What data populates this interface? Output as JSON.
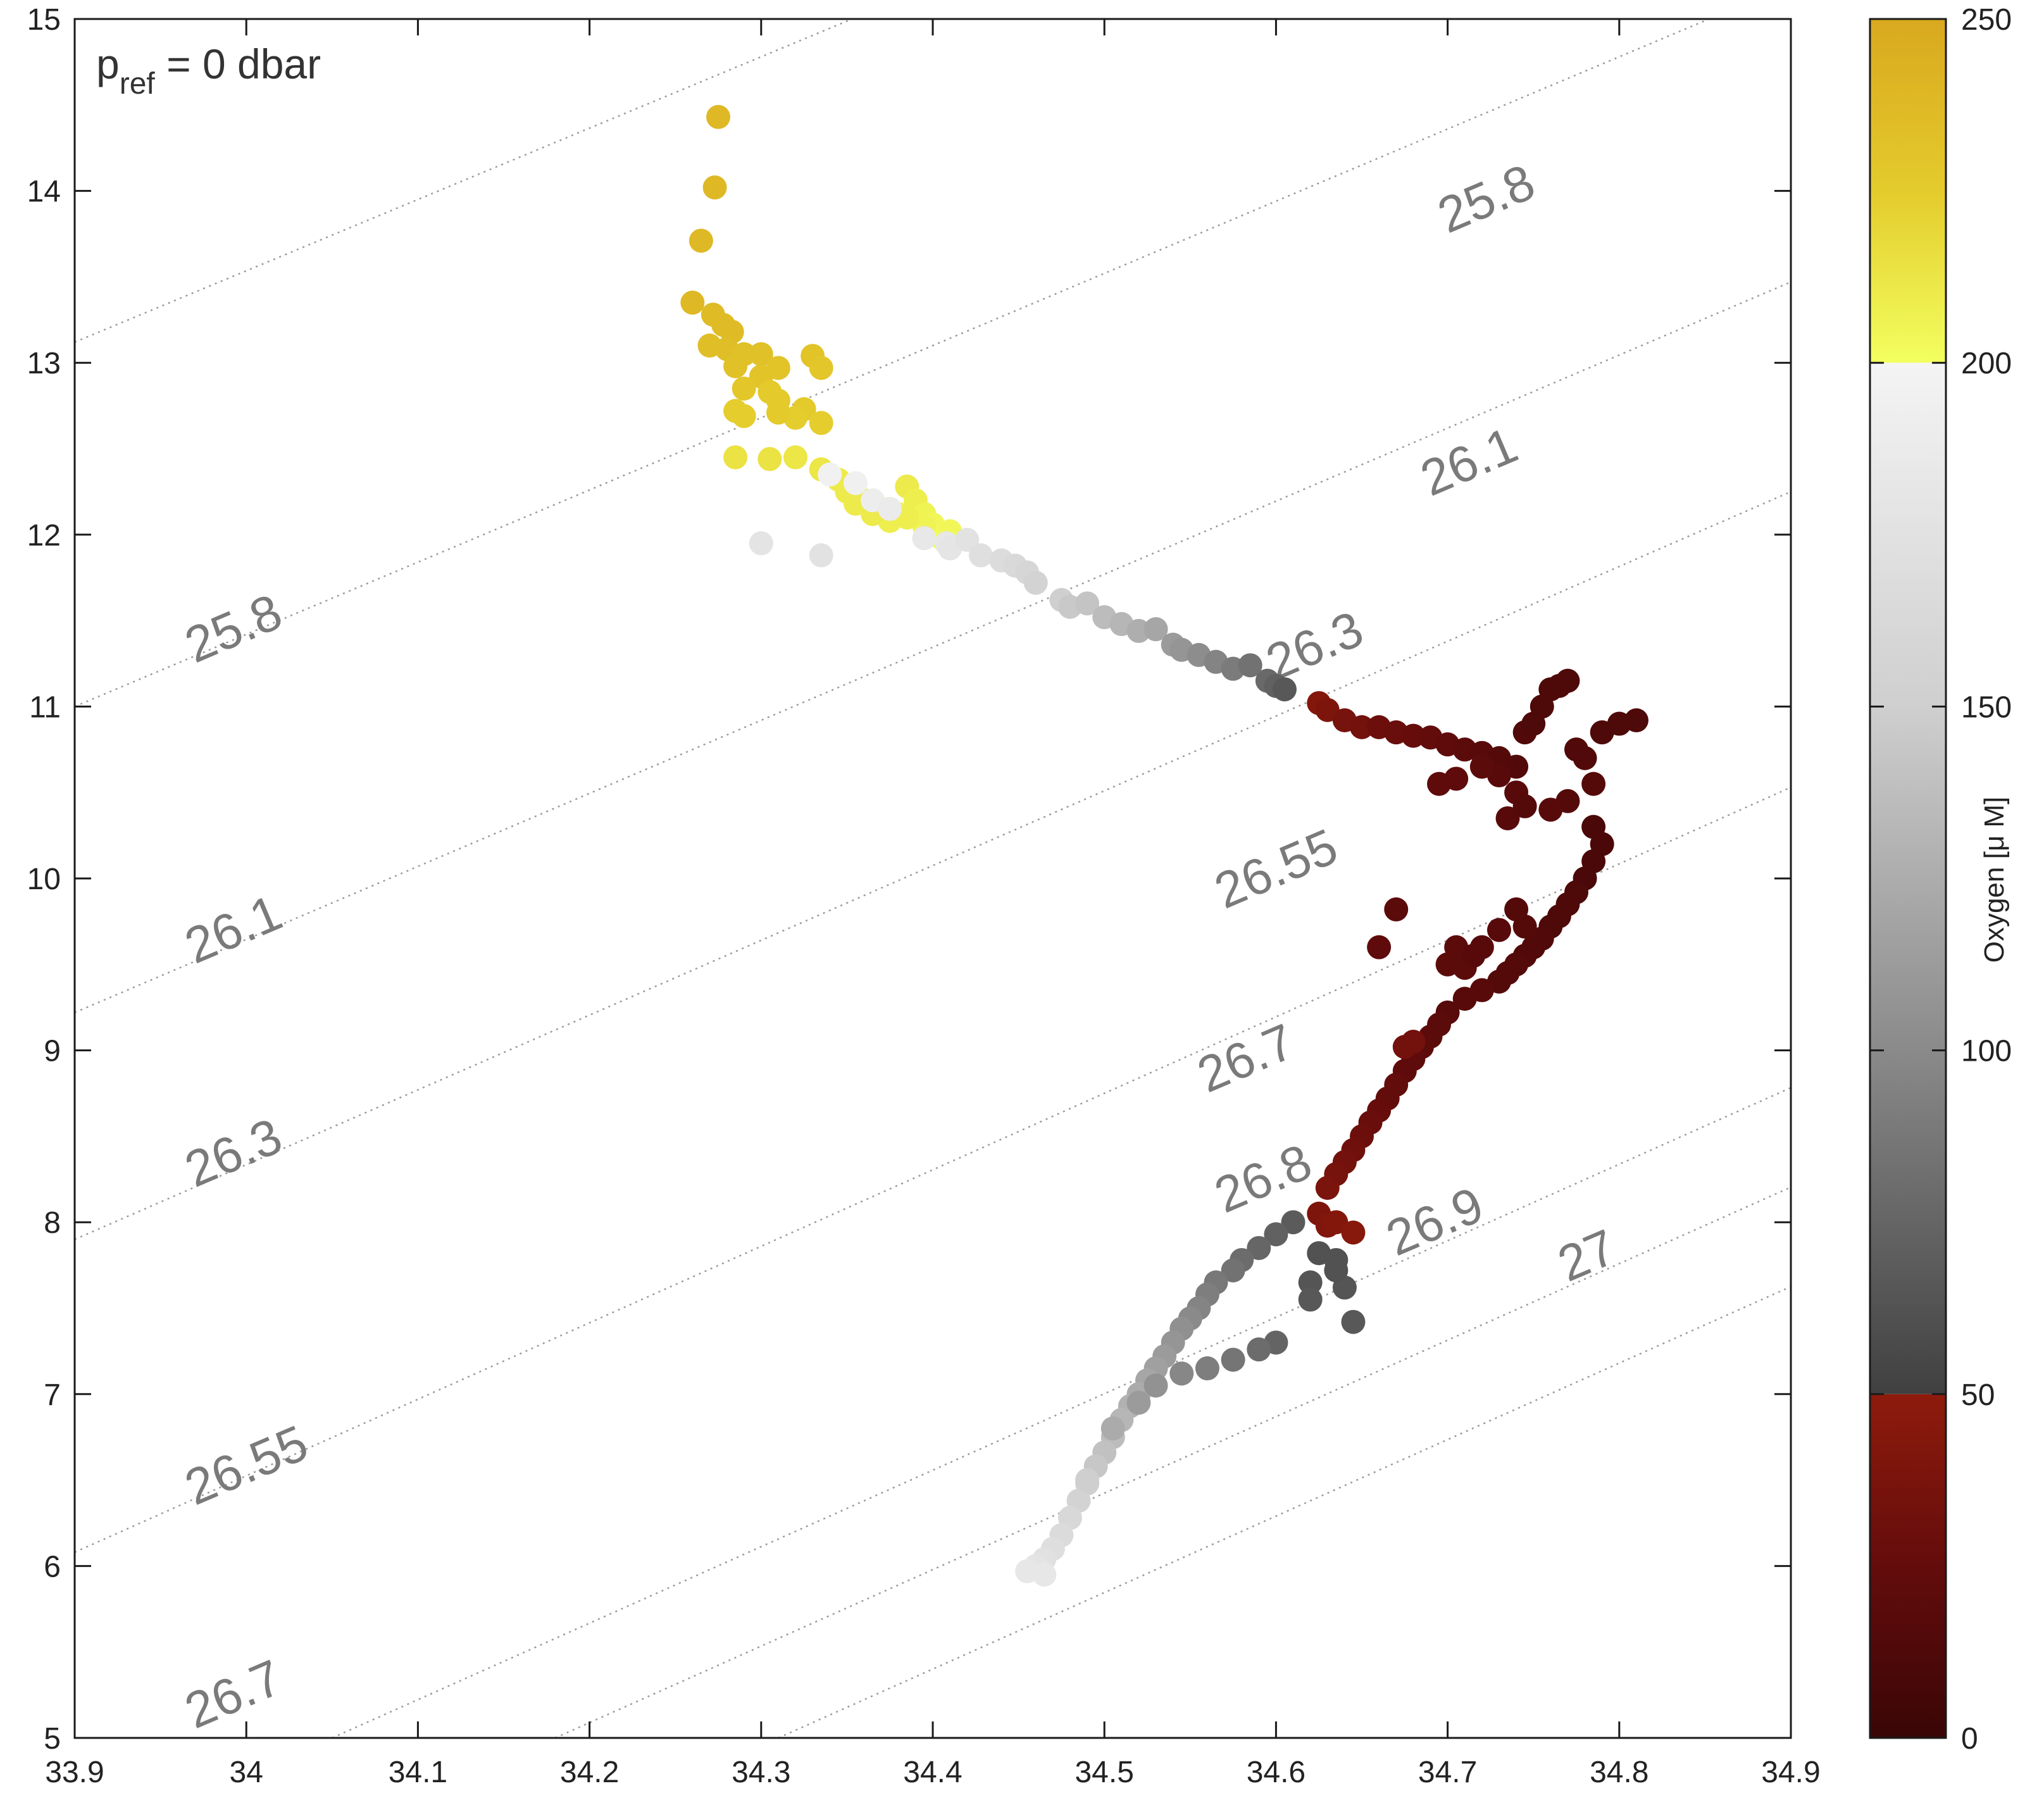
{
  "chart_data": {
    "type": "scatter",
    "title": "",
    "xlabel": "",
    "ylabel": "",
    "xlim": [
      33.9,
      34.9
    ],
    "ylim": [
      5,
      15
    ],
    "xticks": [
      "33.9",
      "34",
      "34.1",
      "34.2",
      "34.3",
      "34.4",
      "34.5",
      "34.6",
      "34.7",
      "34.8",
      "34.9"
    ],
    "yticks": [
      "5",
      "6",
      "7",
      "8",
      "9",
      "10",
      "11",
      "12",
      "13",
      "14",
      "15"
    ],
    "grid": false,
    "annotation": {
      "p_text": "p",
      "sub_text": "ref",
      "rest_text": " = 0 dbar"
    },
    "density_contours": [
      {
        "label": "25.8",
        "start": [
          33.9,
          13.12
        ],
        "slope": 4.15
      },
      {
        "label": "26.1",
        "start": [
          33.9,
          11.0
        ],
        "slope": 4.2
      },
      {
        "label": "26.3",
        "start": [
          33.9,
          9.22
        ],
        "slope": 4.25
      },
      {
        "label": "26.55",
        "start": [
          33.9,
          7.9
        ],
        "slope": 4.35
      },
      {
        "label": "26.7",
        "start": [
          33.9,
          6.08
        ],
        "slope": 4.45
      },
      {
        "label": "26.8",
        "start": [
          34.05,
          5.0
        ],
        "slope": 4.45
      },
      {
        "label": "26.9",
        "start": [
          34.18,
          5.0
        ],
        "slope": 4.45
      },
      {
        "label": "27",
        "start": [
          34.31,
          5.0
        ],
        "slope": 4.45
      }
    ],
    "contour_labels": [
      {
        "text": "25.8",
        "x": 33.97,
        "y": 11.25
      },
      {
        "text": "26.1",
        "x": 33.97,
        "y": 9.5
      },
      {
        "text": "26.3",
        "x": 33.97,
        "y": 8.2
      },
      {
        "text": "26.55",
        "x": 33.97,
        "y": 6.35
      },
      {
        "text": "26.7",
        "x": 33.97,
        "y": 5.05
      },
      {
        "text": "25.8",
        "x": 34.7,
        "y": 13.75
      },
      {
        "text": "26.1",
        "x": 34.69,
        "y": 12.22
      },
      {
        "text": "26.3",
        "x": 34.6,
        "y": 11.15
      },
      {
        "text": "26.55",
        "x": 34.57,
        "y": 9.82
      },
      {
        "text": "26.7",
        "x": 34.56,
        "y": 8.75
      },
      {
        "text": "26.8",
        "x": 34.57,
        "y": 8.05
      },
      {
        "text": "26.9",
        "x": 34.67,
        "y": 7.8
      },
      {
        "text": "27",
        "x": 34.77,
        "y": 7.65
      }
    ],
    "colorbar": {
      "label": "Oxygen [μ M]",
      "range": [
        0,
        250
      ],
      "ticks": [
        "0",
        "50",
        "100",
        "150",
        "200",
        "250"
      ],
      "segments": [
        {
          "from": 0,
          "to": 50,
          "stops": [
            "#3a0606",
            "#640c0c",
            "#8e1b0c"
          ]
        },
        {
          "from": 50,
          "to": 200,
          "stops": [
            "#404040",
            "#8a8a8a",
            "#cfcfcf",
            "#f4f4f4"
          ]
        },
        {
          "from": 200,
          "to": 250,
          "stops": [
            "#f3ff60",
            "#e4cb2c",
            "#d9a81f"
          ]
        }
      ]
    },
    "series": [
      {
        "x": [
          34.275,
          34.273,
          34.265,
          34.26,
          34.272,
          34.278,
          34.283,
          34.27,
          34.28,
          34.29,
          34.285,
          34.3,
          34.31,
          34.3,
          34.33,
          34.335,
          34.305,
          34.29,
          34.31,
          34.325,
          34.32,
          34.335,
          34.31,
          34.29,
          34.285
        ],
        "y": [
          14.43,
          14.02,
          13.71,
          13.35,
          13.28,
          13.22,
          13.18,
          13.1,
          13.08,
          13.05,
          12.98,
          13.05,
          12.97,
          12.92,
          13.04,
          12.97,
          12.83,
          12.85,
          12.78,
          12.73,
          12.68,
          12.65,
          12.71,
          12.69,
          12.72
        ],
        "o2": [
          238,
          238,
          238,
          238,
          236,
          236,
          236,
          234,
          234,
          232,
          232,
          232,
          230,
          230,
          230,
          228,
          226,
          228,
          226,
          226,
          224,
          224,
          226,
          224,
          224
        ]
      },
      {
        "x": [
          34.285,
          34.305,
          34.32,
          34.335,
          34.345,
          34.35,
          34.36,
          34.37,
          34.38,
          34.385,
          34.39,
          34.395,
          34.4,
          34.398,
          34.405,
          34.41,
          34.395,
          34.385,
          34.375,
          34.365,
          34.355
        ],
        "y": [
          12.45,
          12.44,
          12.45,
          12.38,
          12.32,
          12.25,
          12.2,
          12.15,
          12.12,
          12.28,
          12.2,
          12.12,
          12.06,
          12.0,
          11.98,
          12.02,
          12.05,
          12.1,
          12.08,
          12.12,
          12.18
        ],
        "o2": [
          214,
          214,
          212,
          212,
          210,
          210,
          208,
          208,
          206,
          210,
          208,
          206,
          204,
          202,
          202,
          204,
          206,
          208,
          208,
          210,
          210
        ]
      },
      {
        "x": [
          34.3,
          34.335,
          34.34,
          34.355,
          34.365,
          34.375,
          34.395,
          34.408,
          34.41,
          34.42,
          34.428,
          34.44,
          34.448,
          34.455,
          34.46,
          34.475,
          34.48,
          34.49,
          34.5,
          34.51,
          34.52,
          34.53,
          34.54,
          34.545,
          34.555,
          34.565,
          34.575,
          34.585,
          34.595,
          34.6,
          34.605
        ],
        "y": [
          11.95,
          11.88,
          12.35,
          12.3,
          12.2,
          12.15,
          11.98,
          11.95,
          11.92,
          11.97,
          11.88,
          11.85,
          11.82,
          11.78,
          11.72,
          11.62,
          11.58,
          11.6,
          11.52,
          11.48,
          11.44,
          11.45,
          11.36,
          11.33,
          11.3,
          11.26,
          11.22,
          11.24,
          11.15,
          11.12,
          11.1
        ],
        "o2": [
          178,
          176,
          196,
          194,
          190,
          188,
          184,
          182,
          180,
          176,
          172,
          168,
          164,
          160,
          156,
          150,
          146,
          142,
          136,
          132,
          126,
          120,
          112,
          108,
          102,
          96,
          90,
          84,
          78,
          72,
          66
        ]
      },
      {
        "x": [
          34.625,
          34.63,
          34.64,
          34.65,
          34.66,
          34.67,
          34.68,
          34.69,
          34.7,
          34.71,
          34.72,
          34.73,
          34.74,
          34.745,
          34.75,
          34.755,
          34.76,
          34.765,
          34.77,
          34.775,
          34.78,
          34.79,
          34.8,
          34.81,
          34.785,
          34.77,
          34.76,
          34.74,
          34.73,
          34.72,
          34.735,
          34.745
        ],
        "y": [
          11.02,
          10.98,
          10.92,
          10.88,
          10.88,
          10.85,
          10.83,
          10.82,
          10.78,
          10.75,
          10.73,
          10.7,
          10.65,
          10.85,
          10.9,
          11.0,
          11.1,
          11.12,
          11.15,
          10.75,
          10.7,
          10.85,
          10.9,
          10.92,
          10.55,
          10.45,
          10.4,
          10.5,
          10.6,
          10.65,
          10.35,
          10.42
        ],
        "o2": [
          44,
          40,
          36,
          34,
          30,
          28,
          26,
          24,
          22,
          20,
          18,
          16,
          14,
          14,
          12,
          12,
          12,
          12,
          12,
          14,
          14,
          12,
          12,
          12,
          16,
          16,
          18,
          18,
          18,
          20,
          18,
          16
        ]
      },
      {
        "x": [
          34.695,
          34.705,
          34.785,
          34.79,
          34.785,
          34.78,
          34.775,
          34.77,
          34.765,
          34.76,
          34.755,
          34.75,
          34.745,
          34.74,
          34.735,
          34.73,
          34.72,
          34.71,
          34.7,
          34.695,
          34.69,
          34.685,
          34.68,
          34.675,
          34.67,
          34.665,
          34.66,
          34.655,
          34.65,
          34.645,
          34.64,
          34.635,
          34.63,
          34.625,
          34.63,
          34.635,
          34.645
        ],
        "y": [
          10.55,
          10.58,
          10.3,
          10.2,
          10.1,
          10.0,
          9.92,
          9.85,
          9.78,
          9.72,
          9.65,
          9.6,
          9.55,
          9.5,
          9.45,
          9.4,
          9.35,
          9.3,
          9.22,
          9.15,
          9.08,
          9.02,
          8.95,
          8.88,
          8.8,
          8.72,
          8.65,
          8.58,
          8.5,
          8.42,
          8.35,
          8.28,
          8.2,
          8.05,
          7.98,
          8.0,
          7.94
        ],
        "o2": [
          22,
          22,
          10,
          10,
          10,
          10,
          12,
          12,
          12,
          12,
          14,
          14,
          14,
          16,
          16,
          16,
          18,
          18,
          18,
          20,
          20,
          20,
          22,
          22,
          24,
          24,
          26,
          28,
          30,
          32,
          34,
          36,
          38,
          40,
          42,
          44,
          46
        ]
      },
      {
        "x": [
          34.67,
          34.66,
          34.675,
          34.68,
          34.74,
          34.745,
          34.73,
          34.72,
          34.705,
          34.7,
          34.71,
          34.715
        ],
        "y": [
          9.82,
          9.6,
          9.02,
          9.05,
          9.82,
          9.72,
          9.7,
          9.6,
          9.6,
          9.5,
          9.48,
          9.55
        ],
        "o2": [
          20,
          22,
          34,
          34,
          16,
          16,
          18,
          18,
          20,
          20,
          20,
          18
        ]
      },
      {
        "x": [
          34.61,
          34.6,
          34.59,
          34.58,
          34.575,
          34.565,
          34.56,
          34.555,
          34.55,
          34.545,
          34.54,
          34.535,
          34.53,
          34.525,
          34.52,
          34.515,
          34.51,
          34.505,
          34.5,
          34.495,
          34.49,
          34.485,
          34.48,
          34.475,
          34.47,
          34.465,
          34.46,
          34.455
        ],
        "y": [
          8.0,
          7.93,
          7.85,
          7.78,
          7.72,
          7.65,
          7.58,
          7.5,
          7.44,
          7.38,
          7.3,
          7.22,
          7.15,
          7.08,
          7.0,
          6.93,
          6.85,
          6.75,
          6.66,
          6.58,
          6.48,
          6.38,
          6.28,
          6.18,
          6.1,
          6.04,
          6.0,
          5.97
        ],
        "o2": [
          68,
          72,
          76,
          80,
          84,
          88,
          92,
          96,
          100,
          104,
          108,
          112,
          116,
          120,
          124,
          128,
          132,
          136,
          140,
          144,
          150,
          156,
          162,
          166,
          170,
          174,
          178,
          182
        ]
      },
      {
        "x": [
          34.625,
          34.62,
          34.635,
          34.64,
          34.645,
          34.635,
          34.62,
          34.6,
          34.59,
          34.575,
          34.56,
          34.545,
          34.53,
          34.52,
          34.505,
          34.49,
          34.465
        ],
        "y": [
          7.82,
          7.65,
          7.78,
          7.62,
          7.42,
          7.72,
          7.55,
          7.3,
          7.26,
          7.2,
          7.15,
          7.12,
          7.05,
          6.95,
          6.8,
          6.5,
          5.95
        ],
        "o2": [
          62,
          64,
          62,
          64,
          66,
          62,
          66,
          74,
          80,
          86,
          92,
          98,
          106,
          112,
          124,
          150,
          182
        ]
      }
    ]
  }
}
